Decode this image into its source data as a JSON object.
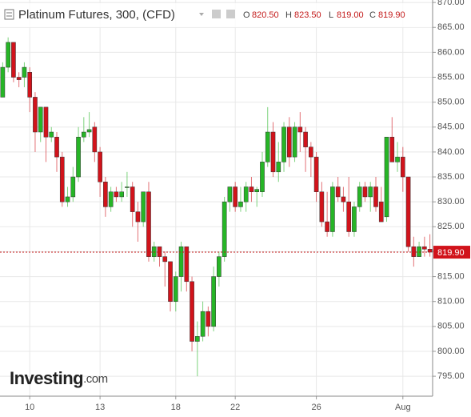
{
  "chart_data": {
    "type": "candlestick",
    "title": "Platinum Futures, 300, (CFD)",
    "header": {
      "open_key": "O",
      "open": "820.50",
      "high_key": "H",
      "high": "823.50",
      "low_key": "L",
      "low": "819.00",
      "close_key": "C",
      "close": "819.90"
    },
    "watermark": {
      "brand": "Investing",
      "suffix": ".com"
    },
    "up_color": "#26b526",
    "down_color": "#d1131b",
    "grid": true,
    "categories": [
      null,
      null,
      null,
      null,
      null,
      "10",
      null,
      null,
      null,
      null,
      null,
      null,
      null,
      null,
      null,
      null,
      null,
      null,
      "13",
      null,
      null,
      null,
      null,
      null,
      null,
      null,
      null,
      null,
      null,
      null,
      null,
      null,
      "18",
      null,
      null,
      null,
      null,
      null,
      null,
      null,
      null,
      null,
      null,
      "22",
      null,
      null,
      null,
      null,
      null,
      null,
      null,
      null,
      null,
      null,
      null,
      null,
      null,
      null,
      "26",
      null,
      null,
      null,
      null,
      null,
      null,
      null,
      null,
      null,
      null,
      null,
      null,
      null,
      null,
      null,
      "Aug",
      null,
      null,
      null,
      null,
      null
    ],
    "open": [
      851,
      857,
      862,
      855,
      855,
      856,
      851,
      844,
      849,
      843,
      843,
      839,
      830,
      831,
      835,
      843,
      844,
      845,
      840,
      834,
      829,
      832,
      831,
      833,
      833,
      828,
      826,
      832,
      819,
      821,
      819,
      818,
      810,
      815,
      821,
      814,
      802,
      803,
      808,
      805,
      815,
      819,
      830,
      833,
      829,
      830,
      833,
      832,
      832,
      838,
      844,
      836,
      838,
      845,
      839,
      845,
      844,
      841,
      839,
      832,
      826,
      824,
      833,
      831,
      830,
      824,
      829,
      833,
      831,
      833,
      830,
      827,
      843,
      838,
      839,
      835,
      821,
      819,
      821,
      820.5
    ],
    "high": [
      858,
      863,
      862,
      856,
      858,
      857,
      852,
      849,
      849,
      845,
      844,
      840,
      833,
      837,
      845,
      847,
      848,
      846,
      841,
      835,
      833,
      833,
      834,
      836,
      834,
      830,
      832,
      834,
      822,
      821,
      820,
      818,
      816,
      822,
      821,
      815,
      806,
      810,
      809,
      817,
      820,
      831,
      833,
      834,
      833,
      834,
      835,
      833,
      840,
      849,
      846,
      842,
      846,
      847,
      846,
      848,
      845,
      842,
      840,
      834,
      832,
      834,
      835,
      833,
      835,
      830,
      834,
      834,
      834,
      835,
      833,
      843,
      847,
      842,
      841,
      835,
      823,
      822,
      823,
      823.5
    ],
    "low": [
      851,
      856,
      854,
      853,
      853,
      848,
      840,
      842,
      838,
      842,
      836,
      829,
      829,
      830,
      834,
      842,
      843,
      838,
      831,
      827,
      828,
      830,
      830,
      831,
      825,
      822,
      825,
      818,
      818,
      817,
      813,
      808,
      808,
      812,
      812,
      800,
      795,
      802,
      803,
      804,
      813,
      818,
      828,
      828,
      828,
      828,
      830,
      829,
      831,
      837,
      835,
      834,
      836,
      837,
      838,
      840,
      836,
      835,
      830,
      825,
      823,
      823,
      830,
      828,
      823,
      823,
      828,
      830,
      828,
      828,
      826,
      826,
      838,
      836,
      832,
      820,
      817,
      819,
      819,
      819
    ],
    "close": [
      857,
      862,
      855,
      854.5,
      857,
      851,
      844,
      849,
      843,
      844,
      839,
      830,
      831,
      835,
      843,
      844,
      844.5,
      840,
      834,
      829,
      832,
      831,
      832,
      833,
      828,
      826,
      832,
      819,
      821,
      819,
      818,
      810,
      815,
      821,
      814,
      802,
      803,
      808,
      805,
      815,
      819,
      830,
      833,
      829,
      830,
      833,
      832,
      832.5,
      838,
      844,
      836,
      838,
      845,
      839,
      845,
      844,
      841,
      839,
      832,
      826,
      824,
      833,
      831,
      830,
      824,
      829,
      833,
      831,
      833,
      829,
      826,
      843,
      838,
      839,
      835,
      821,
      819,
      821,
      820.5,
      819.9
    ],
    "last_price": {
      "value": 819.9,
      "label": "819.90"
    },
    "ylim": [
      791,
      870.5
    ],
    "yticks": [
      {
        "value": 795,
        "label": "795.00"
      },
      {
        "value": 800,
        "label": "800.00"
      },
      {
        "value": 805,
        "label": "805.00"
      },
      {
        "value": 810,
        "label": "810.00"
      },
      {
        "value": 815,
        "label": "815.00"
      },
      {
        "value": 820,
        "label": "820.00"
      },
      {
        "value": 825,
        "label": "825.00"
      },
      {
        "value": 830,
        "label": "830.00"
      },
      {
        "value": 835,
        "label": "835.00"
      },
      {
        "value": 840,
        "label": "840.00"
      },
      {
        "value": 845,
        "label": "845.00"
      },
      {
        "value": 850,
        "label": "850.00"
      },
      {
        "value": 855,
        "label": "855.00"
      },
      {
        "value": 860,
        "label": "860.00"
      },
      {
        "value": 865,
        "label": "865.00"
      },
      {
        "value": 870,
        "label": "870.00"
      }
    ]
  }
}
